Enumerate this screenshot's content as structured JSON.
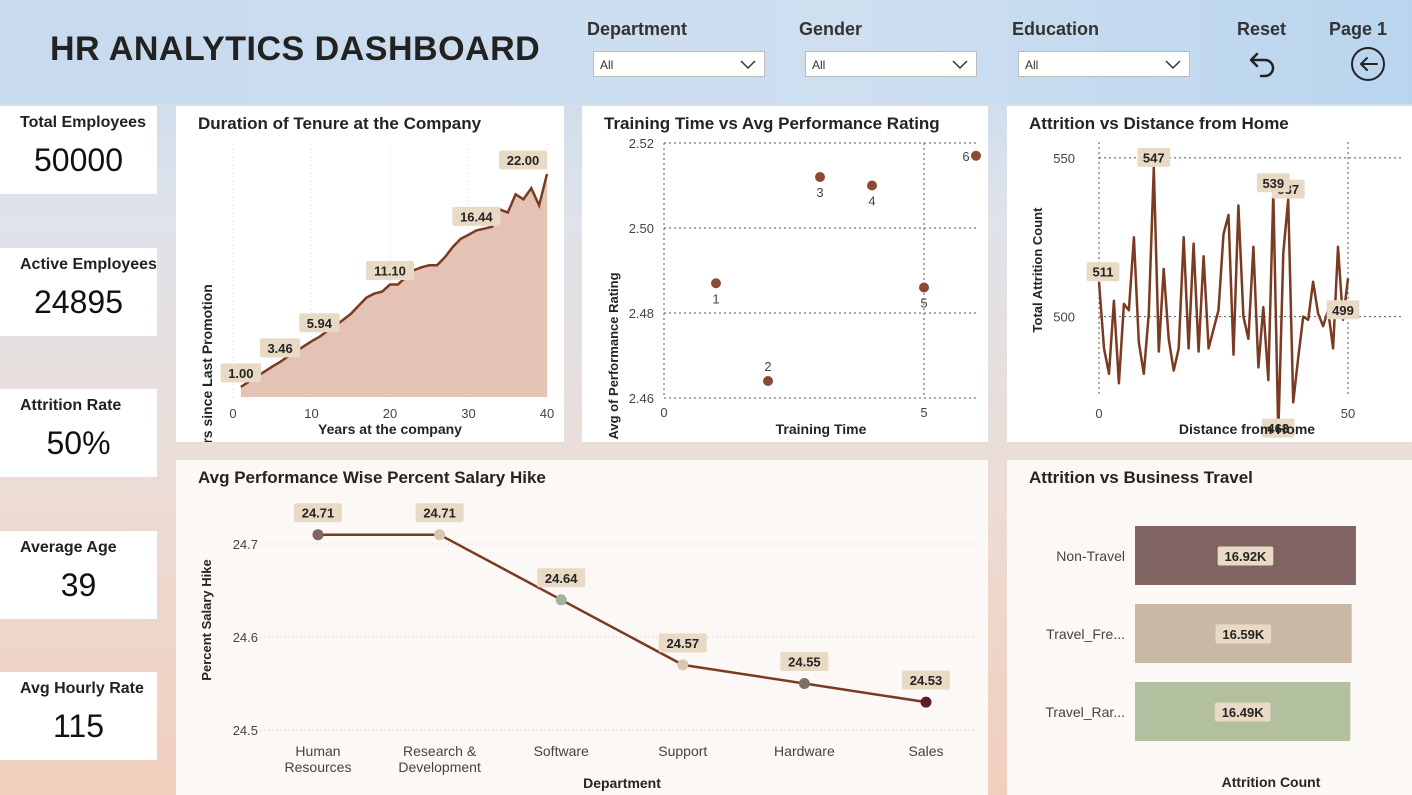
{
  "header": {
    "title": "HR ANALYTICS DASHBOARD",
    "filters": [
      {
        "label": "Department",
        "value": "All"
      },
      {
        "label": "Gender",
        "value": "All"
      },
      {
        "label": "Education",
        "value": "All"
      }
    ],
    "reset_label": "Reset",
    "page_label": "Page 1",
    "reset_icon": "undo-arrow-icon",
    "page_icon": "back-circle-arrow-icon"
  },
  "kpis": [
    {
      "label": "Total Employees",
      "value": "50000"
    },
    {
      "label": "Active Employees",
      "value": "24895"
    },
    {
      "label": "Attrition Rate",
      "value": "50%"
    },
    {
      "label": "Average Age",
      "value": "39"
    },
    {
      "label": "Avg Hourly Rate",
      "value": "115"
    }
  ],
  "colors": {
    "line_brown": "#7b3a22",
    "area_fill": "#dfb8a8",
    "label_bg": "#e9dac6",
    "bar_nontravel": "#806461",
    "bar_frequently": "#c9b8a6",
    "bar_rarely": "#b2c0a0"
  },
  "charts": {
    "tenure": {
      "title": "Duration of Tenure at the Company",
      "xlabel": "Years at the company",
      "ylabel": "Years since Last Promotion",
      "x_ticks": [
        "0",
        "10",
        "20",
        "30",
        "40"
      ],
      "labels": [
        "1.00",
        "3.46",
        "5.94",
        "11.10",
        "16.44",
        "22.00"
      ]
    },
    "training": {
      "title": "Training Time vs Avg Performance Rating",
      "xlabel": "Training Time",
      "ylabel": "Avg of Performance Rating",
      "x_ticks": [
        "0",
        "5"
      ],
      "y_ticks": [
        "2.52",
        "2.50",
        "2.48",
        "2.46"
      ]
    },
    "distance": {
      "title": "Attrition vs Distance from Home",
      "xlabel": "Distance from Home",
      "ylabel": "Total Attrition Count",
      "x_ticks": [
        "0",
        "50"
      ],
      "y_ticks": [
        "550",
        "500"
      ],
      "labels": [
        "511",
        "547",
        "537",
        "539",
        "463",
        "499"
      ]
    },
    "salary": {
      "title": "Avg Performance Wise Percent Salary Hike",
      "xlabel": "Department",
      "ylabel": "Percent Salary Hike",
      "y_ticks": [
        "24.7",
        "24.6",
        "24.5"
      ]
    },
    "travel": {
      "title": "Attrition vs Business Travel",
      "xlabel": "Attrition Count"
    }
  },
  "chart_data": [
    {
      "type": "area",
      "title": "Duration of Tenure at the Company",
      "xlabel": "Years at the company",
      "ylabel": "Years since Last Promotion",
      "xlim": [
        0,
        40
      ],
      "ylim": [
        0,
        22
      ],
      "x": [
        1,
        2,
        3,
        4,
        5,
        6,
        7,
        8,
        9,
        10,
        11,
        12,
        13,
        14,
        15,
        16,
        17,
        18,
        19,
        20,
        21,
        22,
        23,
        24,
        25,
        26,
        27,
        28,
        29,
        30,
        31,
        32,
        33,
        34,
        35,
        36,
        37,
        38,
        39,
        40
      ],
      "y": [
        1.0,
        1.5,
        2.0,
        2.5,
        3.0,
        3.46,
        4.0,
        4.5,
        5.0,
        5.5,
        5.94,
        6.5,
        7.0,
        7.6,
        8.2,
        9.0,
        9.8,
        10.2,
        10.4,
        11.1,
        11.1,
        11.8,
        12.5,
        12.8,
        13.0,
        13.0,
        13.8,
        14.8,
        15.6,
        16.0,
        16.44,
        16.6,
        16.8,
        18.5,
        18.2,
        20.0,
        19.5,
        20.6,
        18.9,
        22.0
      ],
      "labels": [
        {
          "x": 1,
          "text": "1.00"
        },
        {
          "x": 6,
          "text": "3.46"
        },
        {
          "x": 11,
          "text": "5.94"
        },
        {
          "x": 20,
          "text": "11.10"
        },
        {
          "x": 31,
          "text": "16.44"
        },
        {
          "x": 40,
          "text": "22.00"
        }
      ]
    },
    {
      "type": "scatter",
      "title": "Training Time vs Avg Performance Rating",
      "xlabel": "Training Time",
      "ylabel": "Avg of Performance Rating",
      "xlim": [
        0,
        6
      ],
      "ylim": [
        2.46,
        2.52
      ],
      "points": [
        {
          "label": "1",
          "x": 1,
          "y": 2.487
        },
        {
          "label": "2",
          "x": 2,
          "y": 2.464
        },
        {
          "label": "3",
          "x": 3,
          "y": 2.512
        },
        {
          "label": "4",
          "x": 4,
          "y": 2.51
        },
        {
          "label": "5",
          "x": 5,
          "y": 2.486
        },
        {
          "label": "6",
          "x": 6,
          "y": 2.517
        }
      ]
    },
    {
      "type": "line",
      "title": "Attrition vs Distance from Home",
      "xlabel": "Distance from Home",
      "ylabel": "Total Attrition Count",
      "xlim": [
        0,
        50
      ],
      "ylim": [
        475,
        555
      ],
      "x": [
        0,
        1,
        2,
        3,
        4,
        5,
        6,
        7,
        8,
        9,
        10,
        11,
        12,
        13,
        14,
        15,
        16,
        17,
        18,
        19,
        20,
        21,
        22,
        23,
        24,
        25,
        26,
        27,
        28,
        29,
        30,
        31,
        32,
        33,
        34,
        35,
        36,
        37,
        38,
        39,
        40,
        41,
        42,
        43,
        44,
        45,
        46,
        47,
        48,
        49,
        50
      ],
      "y": [
        511,
        490,
        482,
        505,
        479,
        504,
        502,
        525,
        492,
        482,
        501,
        547,
        489,
        515,
        493,
        483,
        490,
        525,
        490,
        523,
        489,
        519,
        490,
        496,
        502,
        526,
        532,
        488,
        535,
        500,
        493,
        522,
        484,
        503,
        480,
        539,
        463,
        520,
        537,
        473,
        487,
        500,
        499,
        511,
        501,
        497,
        502,
        490,
        522,
        499,
        512
      ],
      "labels": [
        {
          "x": 0,
          "text": "511"
        },
        {
          "x": 11,
          "text": "547"
        },
        {
          "x": 38,
          "text": "537"
        },
        {
          "x": 35,
          "text": "539"
        },
        {
          "x": 36,
          "text": "463"
        },
        {
          "x": 49,
          "text": "499"
        }
      ]
    },
    {
      "type": "line",
      "title": "Avg Performance Wise Percent Salary Hike",
      "xlabel": "Department",
      "ylabel": "Percent Salary Hike",
      "ylim": [
        24.5,
        24.72
      ],
      "categories": [
        "Human Resources",
        "Research & Development",
        "Software",
        "Support",
        "Hardware",
        "Sales"
      ],
      "category_lines": [
        [
          "Human",
          "Resources"
        ],
        [
          "Research &",
          "Development"
        ],
        [
          "Software"
        ],
        [
          "Support"
        ],
        [
          "Hardware"
        ],
        [
          "Sales"
        ]
      ],
      "values": [
        24.71,
        24.71,
        24.64,
        24.57,
        24.55,
        24.53
      ],
      "value_labels": [
        "24.71",
        "24.71",
        "24.64",
        "24.57",
        "24.55",
        "24.53"
      ],
      "point_colors": [
        "#806461",
        "#d9c6ad",
        "#9fb59b",
        "#d9c6ad",
        "#7c7065",
        "#5a1e28"
      ]
    },
    {
      "type": "bar",
      "orientation": "horizontal",
      "title": "Attrition vs Business Travel",
      "xlabel": "Attrition Count",
      "categories": [
        "Non-Travel",
        "Travel_Fre...",
        "Travel_Rar..."
      ],
      "values": [
        16920,
        16590,
        16490
      ],
      "value_labels": [
        "16.92K",
        "16.59K",
        "16.49K"
      ],
      "xlim": [
        0,
        17000
      ]
    }
  ]
}
